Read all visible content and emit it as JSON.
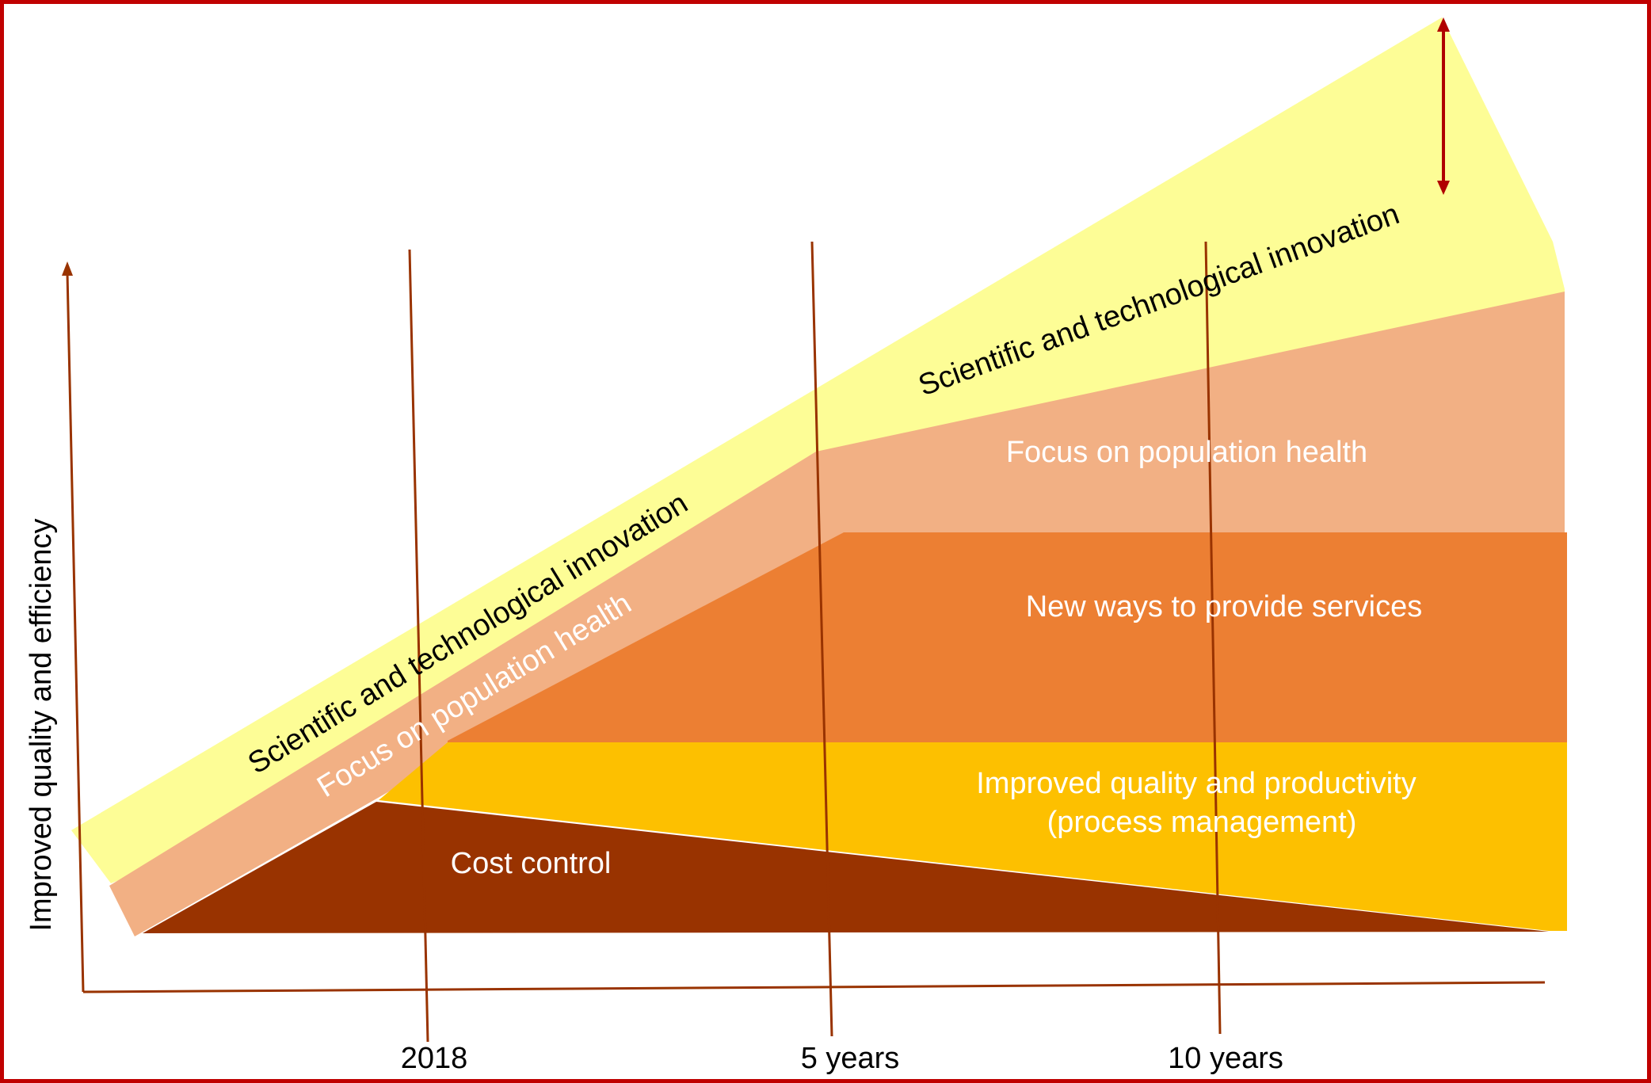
{
  "diagram": {
    "y_axis_label": "Improved quality and efficiency",
    "x_ticks": [
      "2018",
      "5 years",
      "10 years"
    ],
    "layers": {
      "innovation_left": "Scientific and technological innovation",
      "innovation_right": "Scientific and technological innovation",
      "population_left": "Focus on population health",
      "population_right": "Focus on population health",
      "new_ways": "New ways to provide services",
      "quality_line1": "Improved quality and productivity",
      "quality_line2": "(process management)",
      "cost_control": "Cost control"
    },
    "colors": {
      "innovation": "#fdfd96",
      "population": "#f2b084",
      "new_ways": "#ec7f33",
      "quality": "#fdc000",
      "cost": "#993300",
      "axis": "#993300",
      "frame": "#c00000",
      "arrow": "#b00000"
    }
  }
}
